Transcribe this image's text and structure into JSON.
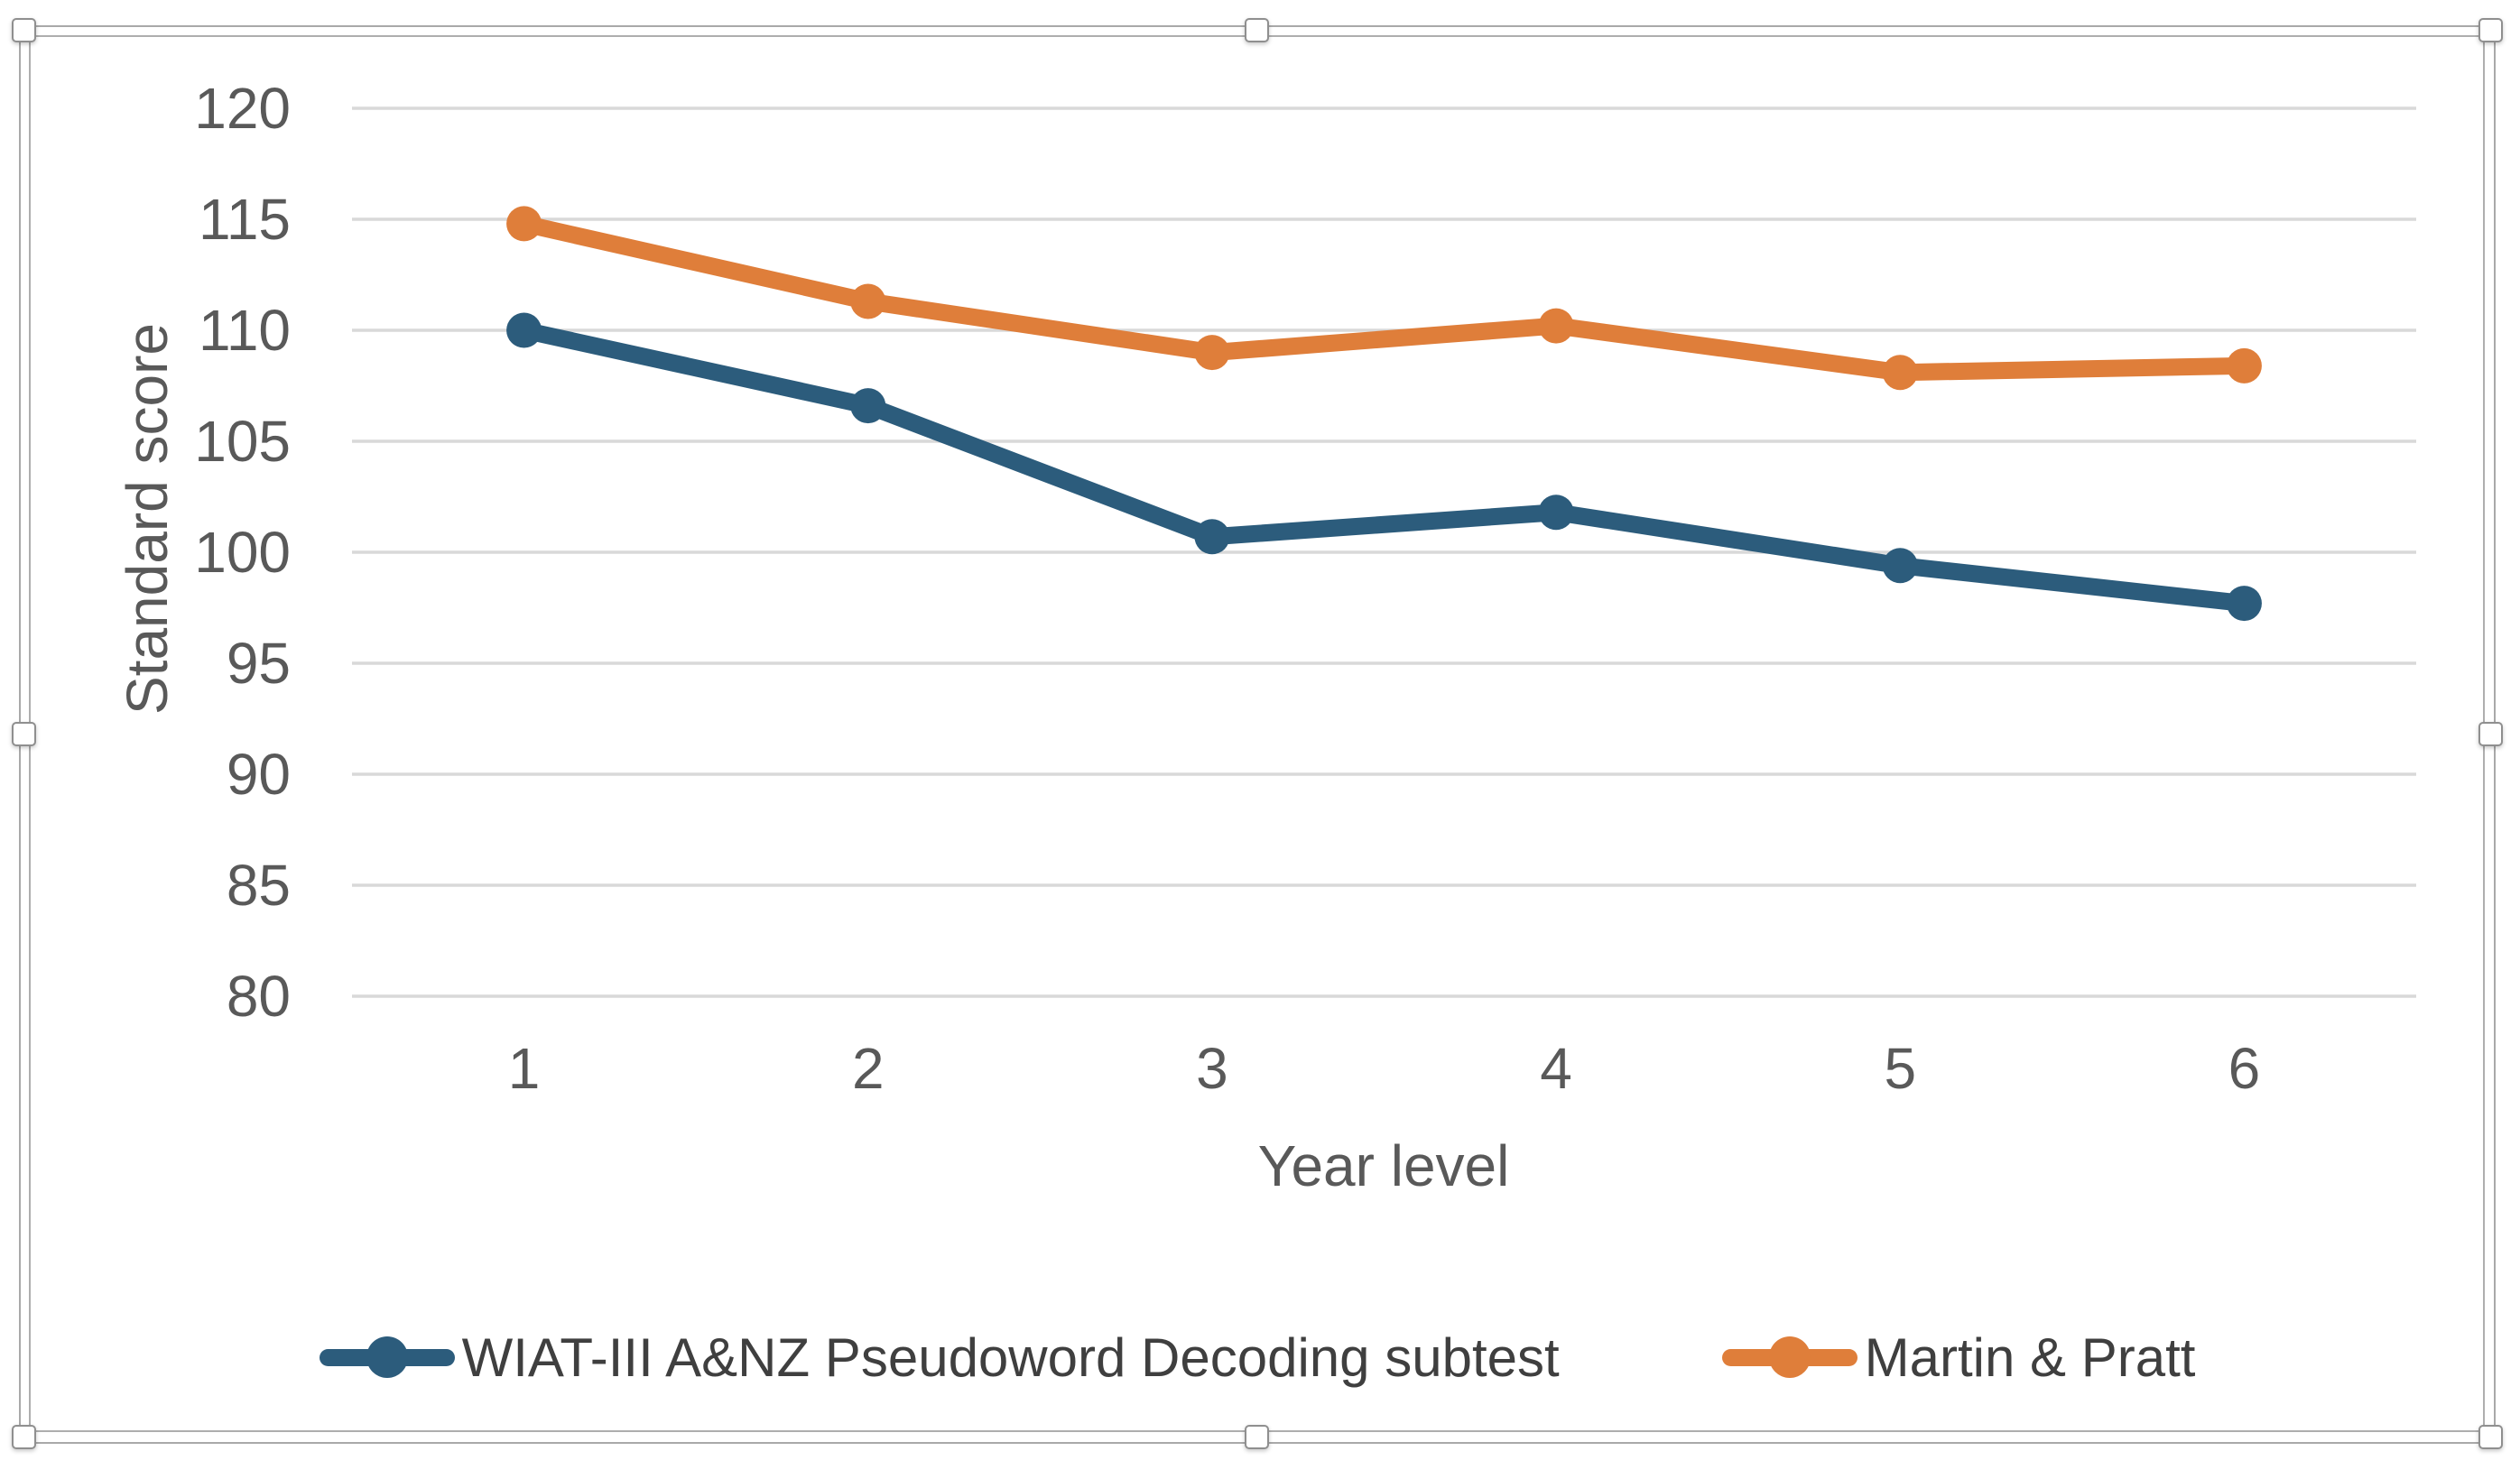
{
  "chart_data": {
    "type": "line",
    "title": "",
    "xlabel": "Year level",
    "ylabel": "Standard score",
    "categories": [
      "1",
      "2",
      "3",
      "4",
      "5",
      "6"
    ],
    "series": [
      {
        "name": "WIAT-III A&NZ Pseudoword Decoding subtest",
        "color": "#2C5C7C",
        "values": [
          110,
          106.6,
          100.7,
          101.8,
          99.4,
          97.7
        ]
      },
      {
        "name": "Martin & Pratt",
        "color": "#DF7E3A",
        "values": [
          114.8,
          111.3,
          109,
          110.2,
          108.1,
          108.4
        ]
      }
    ],
    "ylim": [
      80,
      120
    ],
    "ytick_step": 5,
    "y_tick_labels": [
      "120",
      "115",
      "110",
      "105",
      "100",
      "95",
      "90",
      "85",
      "80"
    ],
    "grid": true,
    "legend_position": "bottom",
    "colors": {
      "gridline": "#D9D9D9",
      "axis_text": "#595959",
      "legend_text": "#3F3F3F"
    }
  }
}
